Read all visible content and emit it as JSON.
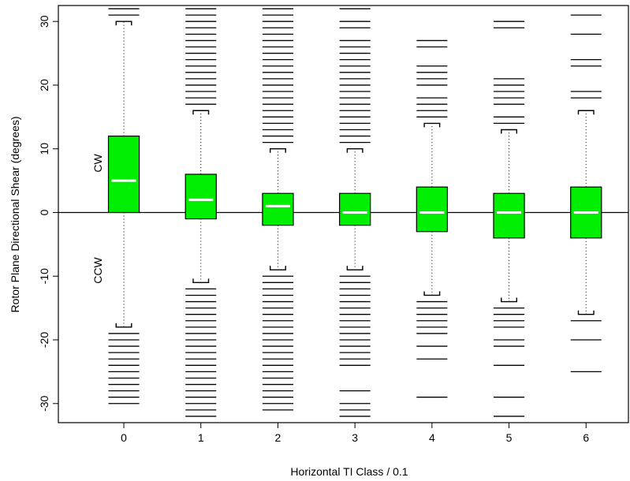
{
  "chart_data": {
    "type": "box",
    "xlabel": "Horizontal TI Class / 0.1",
    "ylabel": "Rotor Plane Directional Shear (degrees)",
    "ylim": [
      -33,
      32.5
    ],
    "xlim": [
      -0.85,
      6.55
    ],
    "y_ticks": [
      -30,
      -20,
      -10,
      0,
      10,
      20,
      30
    ],
    "categories": [
      "0",
      "1",
      "2",
      "3",
      "4",
      "5",
      "6"
    ],
    "region_labels": {
      "upper": "CW",
      "lower": "CCW"
    },
    "reference_line_y": 0,
    "box_color": "#00ee00",
    "median_color": "#ffffff",
    "boxes": [
      {
        "category": "0",
        "q1": 0,
        "median": 5,
        "q3": 12,
        "whisker_low": -18,
        "whisker_high": 30,
        "outliers": [
          31,
          32,
          -19,
          -20,
          -21,
          -22,
          -23,
          -24,
          -25,
          -26,
          -27,
          -28,
          -29,
          -30
        ]
      },
      {
        "category": "1",
        "q1": -1,
        "median": 2,
        "q3": 6,
        "whisker_low": -11,
        "whisker_high": 16,
        "outliers": [
          17,
          18,
          19,
          20,
          21,
          22,
          23,
          24,
          25,
          26,
          27,
          28,
          29,
          30,
          31,
          32,
          -12,
          -13,
          -14,
          -15,
          -16,
          -17,
          -18,
          -19,
          -20,
          -21,
          -22,
          -23,
          -24,
          -25,
          -26,
          -27,
          -28,
          -29,
          -30,
          -31,
          -32
        ]
      },
      {
        "category": "2",
        "q1": -2,
        "median": 1,
        "q3": 3,
        "whisker_low": -9,
        "whisker_high": 10,
        "outliers": [
          11,
          12,
          13,
          14,
          15,
          16,
          17,
          18,
          19,
          20,
          21,
          22,
          23,
          24,
          25,
          26,
          27,
          28,
          29,
          30,
          31,
          32,
          -10,
          -11,
          -12,
          -13,
          -14,
          -15,
          -16,
          -17,
          -18,
          -19,
          -20,
          -21,
          -22,
          -23,
          -24,
          -25,
          -26,
          -27,
          -28,
          -29,
          -30,
          -31
        ]
      },
      {
        "category": "3",
        "q1": -2,
        "median": 0,
        "q3": 3,
        "whisker_low": -9,
        "whisker_high": 10,
        "outliers": [
          11,
          12,
          13,
          14,
          15,
          16,
          17,
          18,
          19,
          20,
          21,
          22,
          23,
          24,
          25,
          26,
          27,
          29,
          30,
          32,
          -10,
          -11,
          -12,
          -13,
          -14,
          -15,
          -16,
          -17,
          -18,
          -19,
          -20,
          -21,
          -22,
          -23,
          -24,
          -28,
          -30,
          -31,
          -32
        ]
      },
      {
        "category": "4",
        "q1": -3,
        "median": 0,
        "q3": 4,
        "whisker_low": -13,
        "whisker_high": 14,
        "outliers": [
          15,
          16,
          17,
          18,
          20,
          21,
          22,
          23,
          26,
          27,
          -14,
          -15,
          -16,
          -17,
          -18,
          -19,
          -21,
          -23,
          -29
        ]
      },
      {
        "category": "5",
        "q1": -4,
        "median": 0,
        "q3": 3,
        "whisker_low": -14,
        "whisker_high": 13,
        "outliers": [
          14,
          15,
          17,
          18,
          19,
          20,
          21,
          29,
          30,
          -15,
          -16,
          -17,
          -18,
          -20,
          -21,
          -24,
          -29,
          -32
        ]
      },
      {
        "category": "6",
        "q1": -4,
        "median": 0,
        "q3": 4,
        "whisker_low": -16,
        "whisker_high": 16,
        "outliers": [
          18,
          19,
          23,
          24,
          28,
          31,
          -17,
          -20,
          -25
        ]
      }
    ]
  }
}
